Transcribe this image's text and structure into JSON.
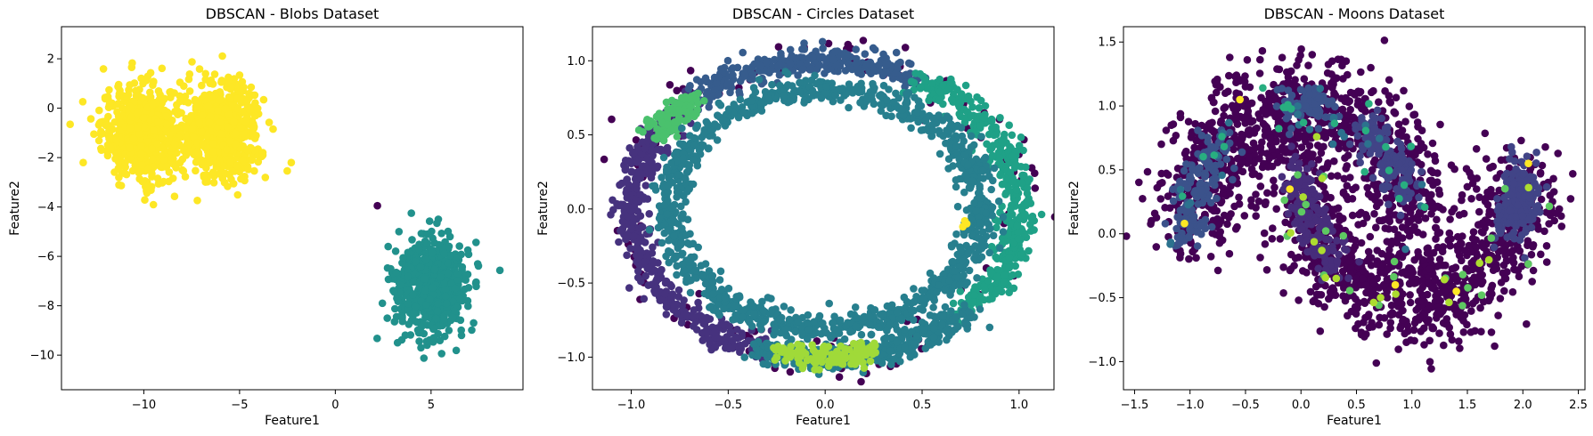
{
  "chart_data": [
    {
      "type": "scatter",
      "title": "DBSCAN - Blobs Dataset",
      "xlabel": "Feature1",
      "ylabel": "Feature2",
      "xlim": [
        -14.3,
        9.8
      ],
      "ylim": [
        -11.4,
        3.3
      ],
      "xticks": [
        -10,
        -5,
        0,
        5
      ],
      "xtick_labels": [
        "−10",
        "−5",
        "0",
        "5"
      ],
      "yticks": [
        2,
        0,
        -2,
        -4,
        -6,
        -8,
        -10
      ],
      "ytick_labels": [
        "2",
        "0",
        "−2",
        "−4",
        "−6",
        "−8",
        "−10"
      ],
      "grid": false,
      "legend": "none",
      "series": [
        {
          "color": "#fde725",
          "shape": "gaussian",
          "n": 650,
          "cx": -10.0,
          "cy": -1.0,
          "sx": 1.1,
          "sy": 0.95
        },
        {
          "color": "#fde725",
          "shape": "gaussian",
          "n": 650,
          "cx": -5.9,
          "cy": -0.9,
          "sx": 1.0,
          "sy": 0.95
        },
        {
          "color": "#21918c",
          "shape": "gaussian",
          "n": 700,
          "cx": 5.0,
          "cy": -7.2,
          "sx": 0.95,
          "sy": 0.9
        },
        {
          "color": "#440154",
          "shape": "points",
          "x": [
            2.2
          ],
          "y": [
            -3.95
          ]
        }
      ]
    },
    {
      "type": "scatter",
      "title": "DBSCAN - Circles Dataset",
      "xlabel": "Feature1",
      "ylabel": "Feature2",
      "xlim": [
        -1.2,
        1.18
      ],
      "ylim": [
        -1.22,
        1.23
      ],
      "xticks": [
        -1.0,
        -0.5,
        0.0,
        0.5,
        1.0
      ],
      "xtick_labels": [
        "−1.0",
        "−0.5",
        "0.0",
        "0.5",
        "1.0"
      ],
      "yticks": [
        1.0,
        0.5,
        0.0,
        -0.5,
        -1.0
      ],
      "ytick_labels": [
        "1.0",
        "0.5",
        "0.0",
        "−0.5",
        "−1.0"
      ],
      "grid": false,
      "legend": "none",
      "series": [
        {
          "color": "#440154",
          "shape": "ring",
          "n": 130,
          "r": 1.0,
          "noise": 0.09,
          "a0": 0,
          "a1": 360
        },
        {
          "color": "#46327e",
          "shape": "ring",
          "n": 420,
          "r": 1.0,
          "noise": 0.045,
          "a0": 132,
          "a1": 250
        },
        {
          "color": "#365c8d",
          "shape": "ring",
          "n": 300,
          "r": 1.0,
          "noise": 0.045,
          "a0": 62,
          "a1": 132
        },
        {
          "color": "#4ac16d",
          "shape": "ring",
          "n": 90,
          "r": 1.0,
          "noise": 0.04,
          "a0": 132,
          "a1": 150
        },
        {
          "color": "#1fa187",
          "shape": "ring",
          "n": 420,
          "r": 1.0,
          "noise": 0.045,
          "a0": -45,
          "a1": 62
        },
        {
          "color": "#277f8e",
          "shape": "ring",
          "n": 380,
          "r": 1.0,
          "noise": 0.045,
          "a0": 250,
          "a1": 315
        },
        {
          "color": "#a0da39",
          "shape": "ring",
          "n": 120,
          "r": 1.0,
          "noise": 0.04,
          "a0": 256,
          "a1": 284
        },
        {
          "color": "#277f8e",
          "shape": "ring",
          "n": 1100,
          "r": 0.8,
          "noise": 0.045,
          "a0": 0,
          "a1": 360
        },
        {
          "color": "#fde725",
          "shape": "points",
          "x": [
            0.71,
            0.73,
            0.72
          ],
          "y": [
            -0.12,
            -0.1,
            -0.08
          ]
        }
      ]
    },
    {
      "type": "scatter",
      "title": "DBSCAN - Moons Dataset",
      "xlabel": "Feature1",
      "ylabel": "Feature2",
      "xlim": [
        -1.6,
        2.56
      ],
      "ylim": [
        -1.22,
        1.62
      ],
      "xticks": [
        -1.5,
        -1.0,
        -0.5,
        0.0,
        0.5,
        1.0,
        1.5,
        2.0,
        2.5
      ],
      "xtick_labels": [
        "−1.5",
        "−1.0",
        "−0.5",
        "0.0",
        "0.5",
        "1.0",
        "1.5",
        "2.0",
        "2.5"
      ],
      "yticks": [
        1.5,
        1.0,
        0.5,
        0.0,
        -0.5,
        -1.0
      ],
      "ytick_labels": [
        "1.5",
        "1.0",
        "0.5",
        "0.0",
        "−0.5",
        "−1.0"
      ],
      "grid": false,
      "legend": "none",
      "series": [
        {
          "color": "#440154",
          "shape": "moon_upper",
          "n": 1000,
          "noise": 0.2,
          "t0": 0,
          "t1": 180
        },
        {
          "color": "#440154",
          "shape": "moon_lower",
          "n": 1000,
          "noise": 0.2,
          "t0": 0,
          "t1": 180
        },
        {
          "color": "#3b528b",
          "shape": "moon_upper",
          "n": 160,
          "noise": 0.09,
          "t0": 135,
          "t1": 180
        },
        {
          "color": "#414487",
          "shape": "moon_upper",
          "n": 140,
          "noise": 0.09,
          "t0": 20,
          "t1": 55
        },
        {
          "color": "#414487",
          "shape": "moon_lower",
          "n": 200,
          "noise": 0.09,
          "t0": 150,
          "t1": 180
        },
        {
          "color": "#472d7b",
          "shape": "moon_lower",
          "n": 160,
          "noise": 0.09,
          "t0": 0,
          "t1": 50
        },
        {
          "color": "#3b528b",
          "shape": "moon_upper",
          "n": 90,
          "noise": 0.07,
          "t0": 75,
          "t1": 100
        },
        {
          "color": "#2c728e",
          "shape": "moon_upper",
          "n": 25,
          "noise": 0.12,
          "t0": 0,
          "t1": 180
        },
        {
          "color": "#28ae80",
          "shape": "moon_upper",
          "n": 22,
          "noise": 0.12,
          "t0": 0,
          "t1": 180
        },
        {
          "color": "#5ec962",
          "shape": "moon_lower",
          "n": 22,
          "noise": 0.12,
          "t0": 0,
          "t1": 180
        },
        {
          "color": "#addc30",
          "shape": "moon_lower",
          "n": 16,
          "noise": 0.12,
          "t0": 0,
          "t1": 180
        },
        {
          "color": "#fde725",
          "shape": "points",
          "x": [
            -1.05,
            -0.1,
            0.85,
            1.4,
            2.05,
            -0.55
          ],
          "y": [
            0.08,
            0.35,
            -0.4,
            -0.45,
            0.55,
            1.05
          ]
        }
      ]
    }
  ]
}
